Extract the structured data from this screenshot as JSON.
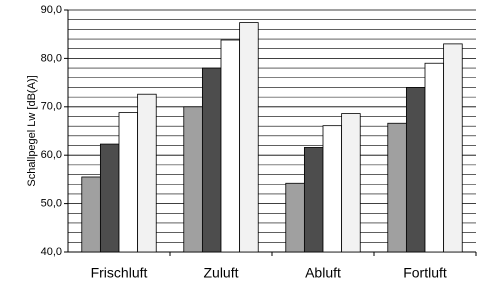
{
  "chart_data": {
    "type": "bar",
    "y_label": "Schallpegel Lw [dB(A)]",
    "categories": [
      "Frischluft",
      "Zuluft",
      "Abluft",
      "Fortluft"
    ],
    "series": [
      {
        "color": "#a0a0a0",
        "values": [
          55.5,
          70.0,
          54.2,
          66.6
        ]
      },
      {
        "color": "#4d4d4d",
        "values": [
          62.3,
          78.0,
          61.6,
          74.0
        ]
      },
      {
        "color": "#ffffff",
        "values": [
          68.8,
          83.8,
          66.1,
          79.0
        ]
      },
      {
        "color": "#f2f2f2",
        "values": [
          72.6,
          87.4,
          68.6,
          83.0
        ]
      }
    ],
    "ylim": [
      40,
      90
    ],
    "yticks": [
      {
        "value": 40,
        "label": "40,0"
      },
      {
        "value": 50,
        "label": "50,0"
      },
      {
        "value": 60,
        "label": "60,0"
      },
      {
        "value": 70,
        "label": "70,0"
      },
      {
        "value": 80,
        "label": "80,0"
      },
      {
        "value": 90,
        "label": "90,0"
      }
    ],
    "ygrid": [
      42,
      44,
      46,
      48,
      52,
      54,
      56,
      58,
      62,
      64,
      66,
      68,
      72,
      74,
      76,
      78,
      82,
      84,
      86,
      88
    ],
    "grid": true
  }
}
